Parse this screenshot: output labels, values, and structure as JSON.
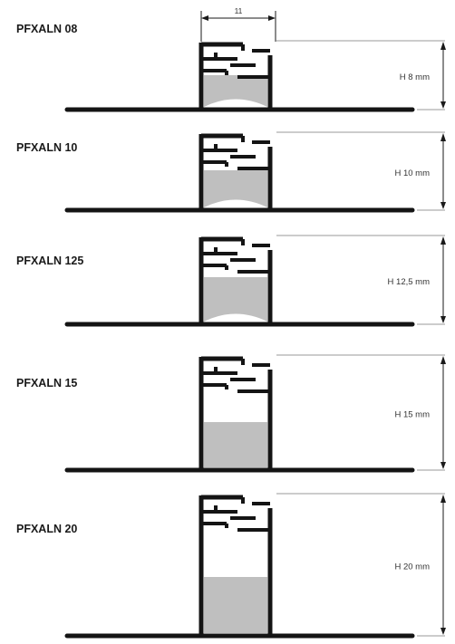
{
  "width_dimension": "11",
  "colors": {
    "profile_stroke": "#141414",
    "insert_fill": "#bfbfbf",
    "dimension_line": "#9a9a9a",
    "dimension_arrow": "#1a1a1a",
    "background": "#ffffff"
  },
  "profiles": [
    {
      "model": "PFXALN 08",
      "height_label": "H 8 mm",
      "height_mm": 8
    },
    {
      "model": "PFXALN 10",
      "height_label": "H 10 mm",
      "height_mm": 10
    },
    {
      "model": "PFXALN 125",
      "height_label": "H 12,5 mm",
      "height_mm": 12.5
    },
    {
      "model": "PFXALN 15",
      "height_label": "H 15 mm",
      "height_mm": 15
    },
    {
      "model": "PFXALN 20",
      "height_label": "H 20 mm",
      "height_mm": 20
    }
  ]
}
